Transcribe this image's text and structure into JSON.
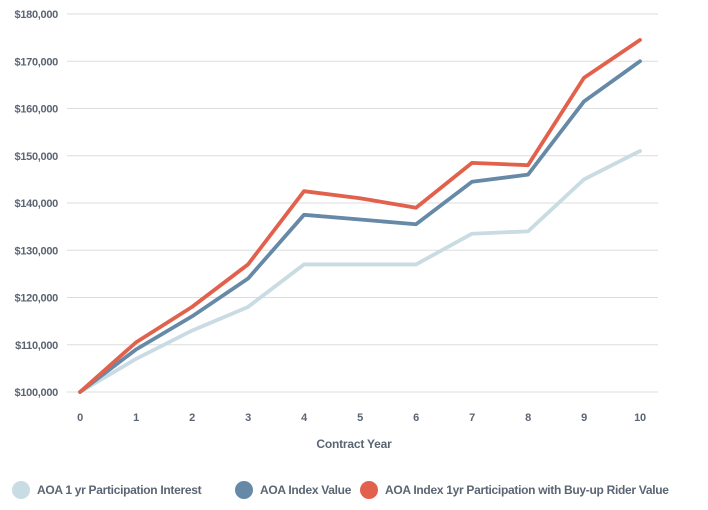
{
  "chart_data": {
    "type": "line",
    "title": "",
    "xlabel": "Contract Year",
    "ylabel": "",
    "x": [
      0,
      1,
      2,
      3,
      4,
      5,
      6,
      7,
      8,
      9,
      10
    ],
    "x_tick_labels": [
      "0",
      "1",
      "2",
      "3",
      "4",
      "5",
      "6",
      "7",
      "8",
      "9",
      "10"
    ],
    "ylim": [
      100000,
      180000
    ],
    "y_ticks": [
      100000,
      110000,
      120000,
      130000,
      140000,
      150000,
      160000,
      170000,
      180000
    ],
    "y_tick_labels": [
      "$100,000",
      "$110,000",
      "$120,000",
      "$130,000",
      "$140,000",
      "$150,000",
      "$160,000",
      "$170,000",
      "$180,000"
    ],
    "grid": "horizontal-only",
    "legend_position": "bottom",
    "series": [
      {
        "name": "AOA 1 yr Participation Interest",
        "color": "#C9DBE3",
        "values": [
          100000,
          107000,
          113000,
          118000,
          127000,
          127000,
          127000,
          133500,
          134000,
          145000,
          151000
        ]
      },
      {
        "name": "AOA Index Value",
        "color": "#6589A6",
        "values": [
          100000,
          109000,
          116000,
          124000,
          137500,
          136500,
          135500,
          144500,
          146000,
          161500,
          170000
        ]
      },
      {
        "name": "AOA Index 1yr Participation with Buy-up Rider Value",
        "color": "#E2614C",
        "values": [
          100000,
          110500,
          118000,
          127000,
          142500,
          141000,
          139000,
          148500,
          148000,
          166500,
          174500
        ]
      }
    ],
    "text_color": "#5B6573",
    "gridline_color": "#DDDDDD"
  }
}
